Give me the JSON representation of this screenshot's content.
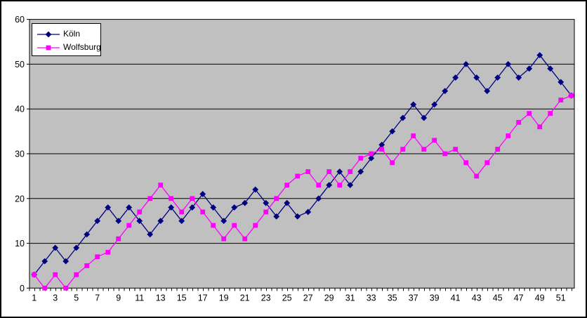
{
  "chart_data": {
    "type": "line",
    "title": "",
    "xlabel": "",
    "ylabel": "",
    "x": [
      1,
      2,
      3,
      4,
      5,
      6,
      7,
      8,
      9,
      10,
      11,
      12,
      13,
      14,
      15,
      16,
      17,
      18,
      19,
      20,
      21,
      22,
      23,
      24,
      25,
      26,
      27,
      28,
      29,
      30,
      31,
      32,
      33,
      34,
      35,
      36,
      37,
      38,
      39,
      40,
      41,
      42,
      43,
      44,
      45,
      46,
      47,
      48,
      49,
      50,
      51,
      52
    ],
    "x_axis_labels": [
      1,
      3,
      5,
      7,
      9,
      11,
      13,
      15,
      17,
      19,
      21,
      23,
      25,
      27,
      29,
      31,
      33,
      35,
      37,
      39,
      41,
      43,
      45,
      47,
      49,
      51
    ],
    "y_ticks": [
      0,
      10,
      20,
      30,
      40,
      50,
      60
    ],
    "ylim": [
      0,
      60
    ],
    "grid": "horizontal",
    "plot_bg": "#c0c0c0",
    "axis_color": "#000000",
    "legend_position": "top-left",
    "series": [
      {
        "name": "Köln",
        "color": "#000080",
        "marker": "diamond",
        "values": [
          3,
          6,
          9,
          6,
          9,
          12,
          15,
          18,
          15,
          18,
          15,
          12,
          15,
          18,
          15,
          18,
          21,
          18,
          15,
          18,
          19,
          22,
          19,
          16,
          19,
          16,
          17,
          20,
          23,
          26,
          23,
          26,
          29,
          32,
          35,
          38,
          41,
          38,
          41,
          44,
          47,
          50,
          47,
          44,
          47,
          50,
          47,
          49,
          52,
          49,
          46,
          43
        ]
      },
      {
        "name": "Wolfsburg",
        "color": "#ff00ff",
        "marker": "square",
        "values": [
          3,
          0,
          3,
          0,
          3,
          5,
          7,
          8,
          11,
          14,
          17,
          20,
          23,
          20,
          17,
          20,
          17,
          14,
          11,
          14,
          11,
          14,
          17,
          20,
          23,
          25,
          26,
          23,
          26,
          23,
          26,
          29,
          30,
          31,
          28,
          31,
          34,
          31,
          33,
          30,
          31,
          28,
          25,
          28,
          31,
          34,
          37,
          39,
          36,
          39,
          42,
          43
        ]
      }
    ]
  },
  "legend": {
    "items": [
      {
        "label": "Köln"
      },
      {
        "label": "Wolfsburg"
      }
    ]
  }
}
